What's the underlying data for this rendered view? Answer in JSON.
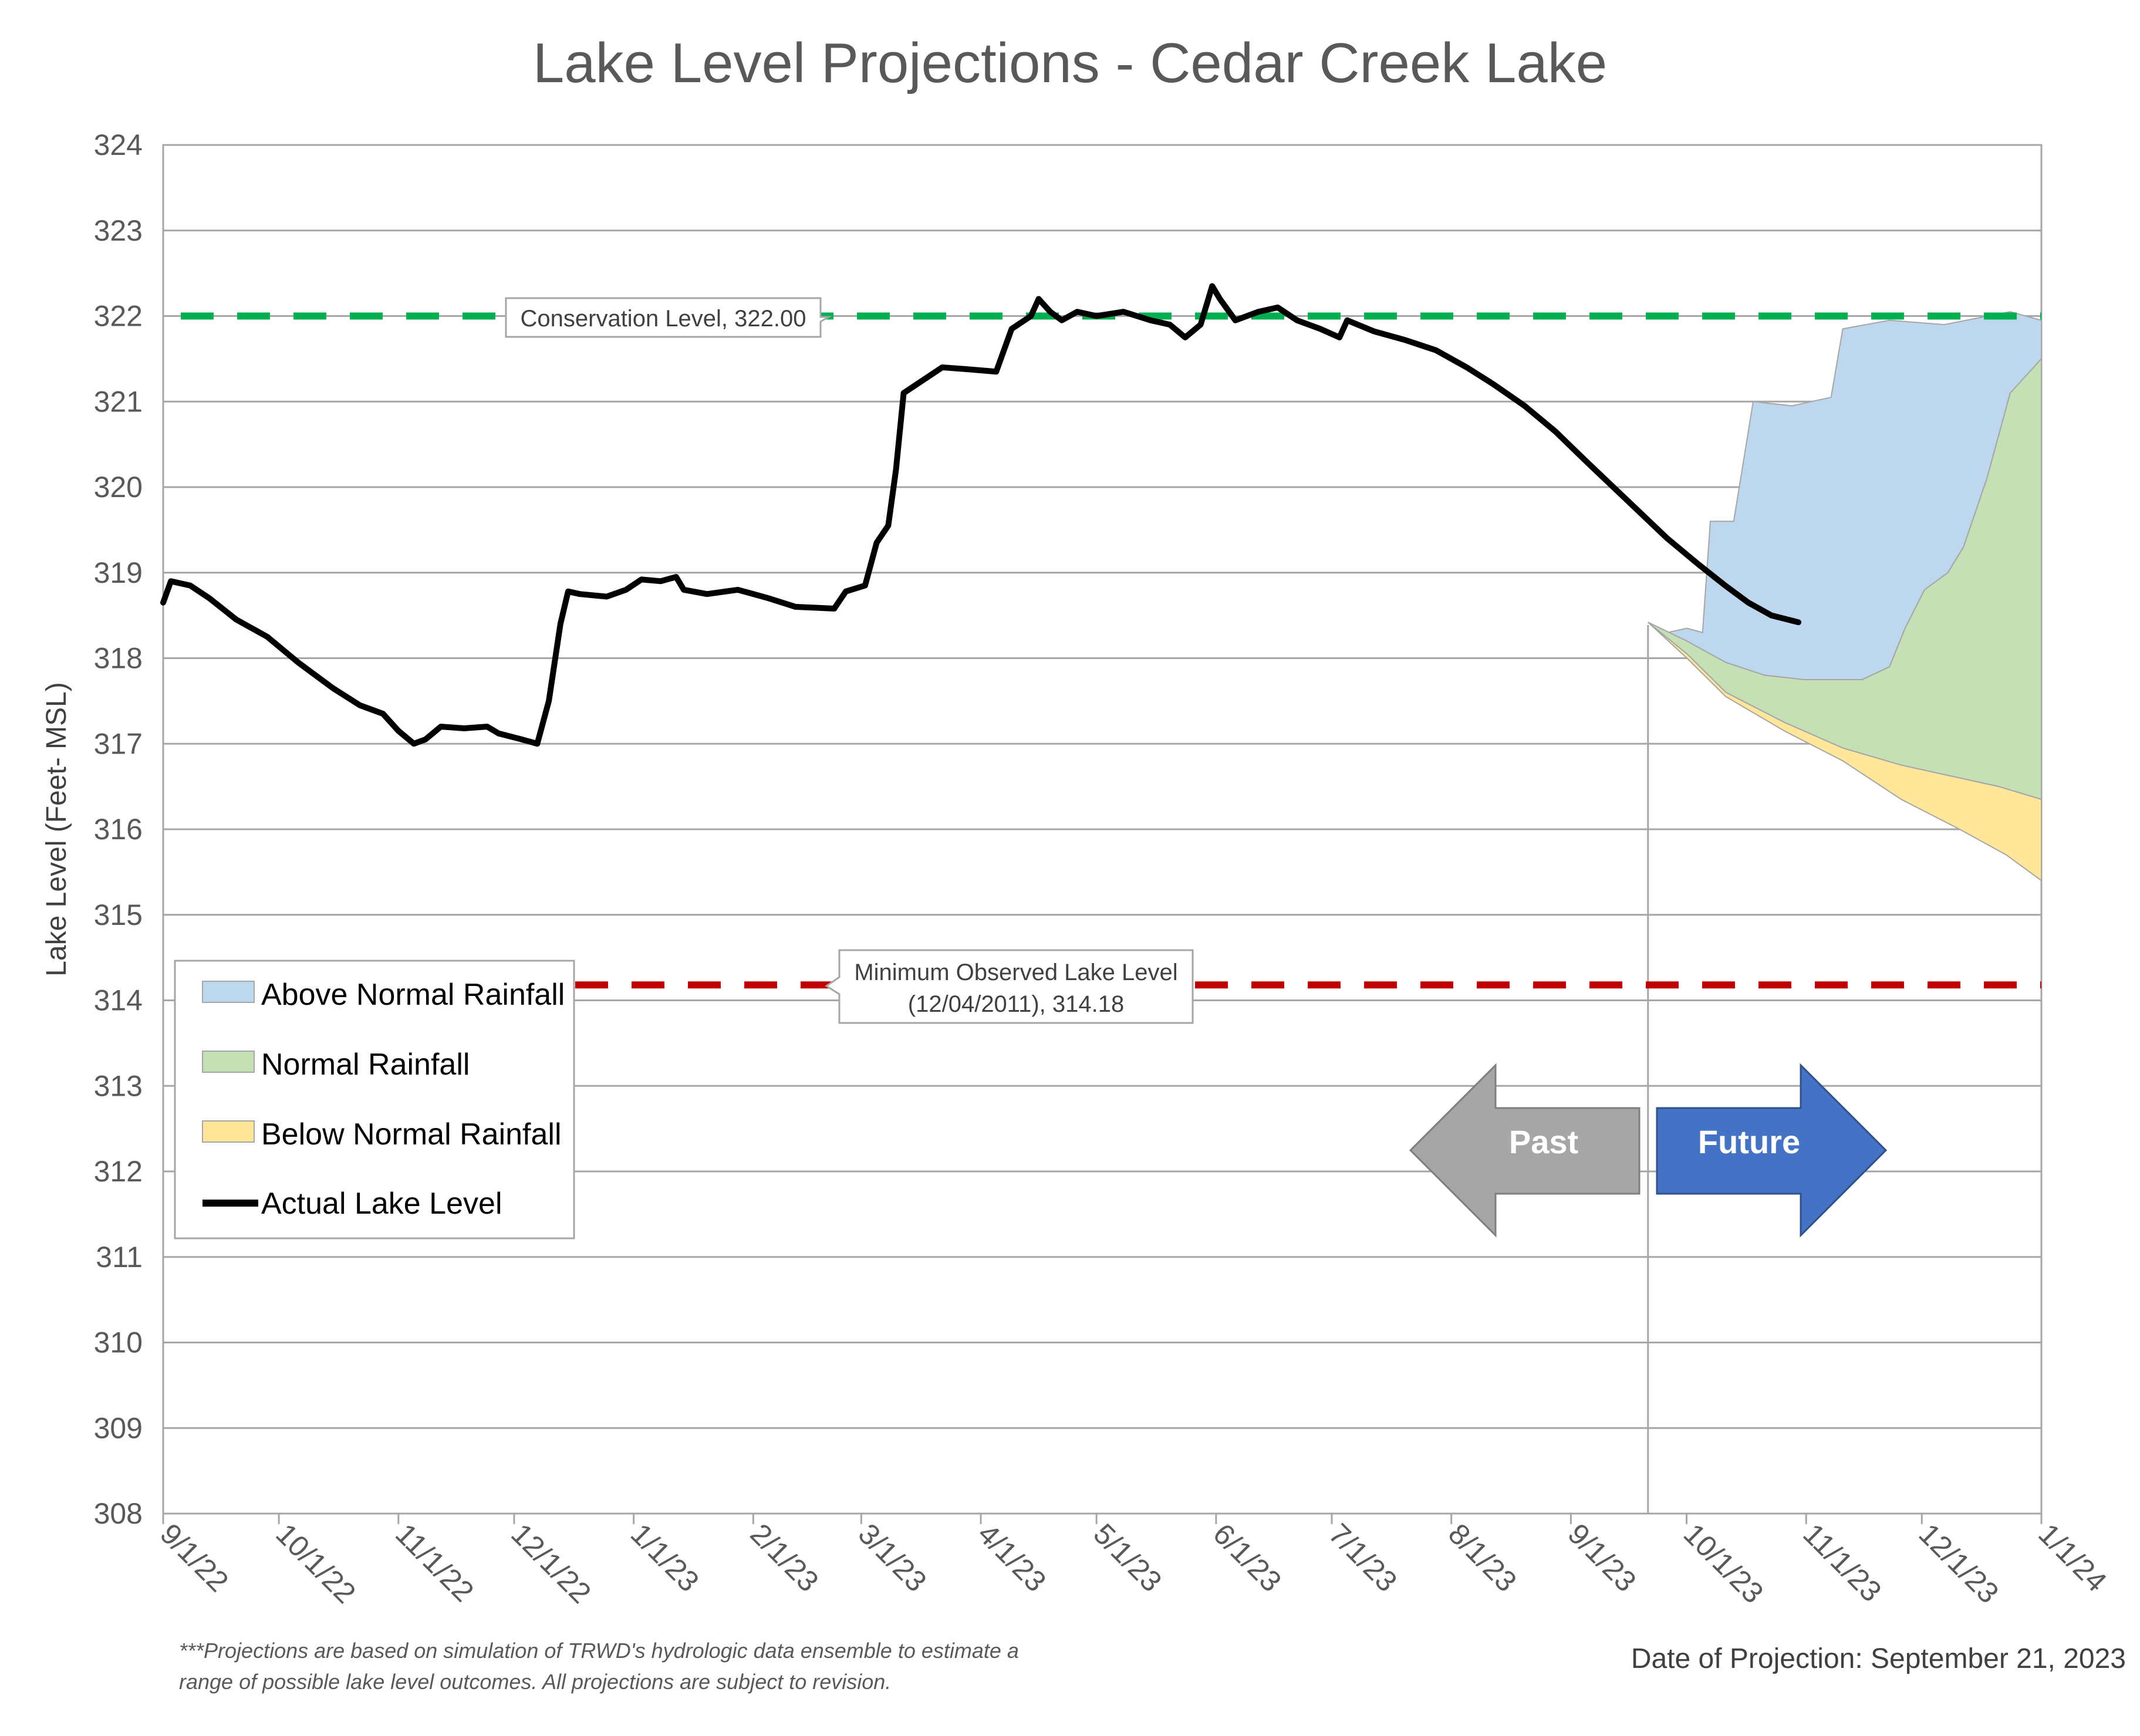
{
  "chart_data": {
    "type": "area",
    "title": "Lake Level Projections - Cedar Creek Lake",
    "ylabel": "Lake Level (Feet- MSL)",
    "xlabel": "",
    "ylim": [
      308,
      324
    ],
    "yticks": [
      "308",
      "309",
      "310",
      "311",
      "312",
      "313",
      "314",
      "315",
      "316",
      "317",
      "318",
      "319",
      "320",
      "321",
      "322",
      "323",
      "324"
    ],
    "xticks": [
      "9/1/22",
      "10/1/22",
      "11/1/22",
      "12/1/22",
      "1/1/23",
      "2/1/23",
      "3/1/23",
      "4/1/23",
      "5/1/23",
      "6/1/23",
      "7/1/23",
      "8/1/23",
      "9/1/23",
      "10/1/23",
      "11/1/23",
      "12/1/23",
      "1/1/24"
    ],
    "grid": "horizontal",
    "projection_date_label": "9/21/23",
    "actual_lake_level": {
      "name": "Actual Lake Level",
      "color": "#000000",
      "points": [
        [
          "9/1/22",
          318.65
        ],
        [
          "9/3/22",
          318.9
        ],
        [
          "9/8/22",
          318.85
        ],
        [
          "9/13/22",
          318.7
        ],
        [
          "9/20/22",
          318.45
        ],
        [
          "9/28/22",
          318.25
        ],
        [
          "10/6/22",
          317.95
        ],
        [
          "10/15/22",
          317.65
        ],
        [
          "10/22/22",
          317.45
        ],
        [
          "10/28/22",
          317.35
        ],
        [
          "11/1/22",
          317.15
        ],
        [
          "11/5/22",
          317.0
        ],
        [
          "11/8/22",
          317.05
        ],
        [
          "11/12/22",
          317.2
        ],
        [
          "11/18/22",
          317.18
        ],
        [
          "11/24/22",
          317.2
        ],
        [
          "11/27/22",
          317.12
        ],
        [
          "12/3/22",
          317.05
        ],
        [
          "12/7/22",
          317.0
        ],
        [
          "12/10/22",
          317.5
        ],
        [
          "12/13/22",
          318.4
        ],
        [
          "12/15/22",
          318.78
        ],
        [
          "12/18/22",
          318.75
        ],
        [
          "12/25/22",
          318.72
        ],
        [
          "12/30/22",
          318.8
        ],
        [
          "1/3/23",
          318.92
        ],
        [
          "1/8/23",
          318.9
        ],
        [
          "1/12/23",
          318.95
        ],
        [
          "1/14/23",
          318.8
        ],
        [
          "1/20/23",
          318.75
        ],
        [
          "1/28/23",
          318.8
        ],
        [
          "2/5/23",
          318.7
        ],
        [
          "2/12/23",
          318.6
        ],
        [
          "2/22/23",
          318.58
        ],
        [
          "2/25/23",
          318.78
        ],
        [
          "3/2/23",
          318.85
        ],
        [
          "3/5/23",
          319.35
        ],
        [
          "3/8/23",
          319.55
        ],
        [
          "3/10/23",
          320.2
        ],
        [
          "3/12/23",
          321.1
        ],
        [
          "3/17/23",
          321.25
        ],
        [
          "3/22/23",
          321.4
        ],
        [
          "3/28/23",
          321.38
        ],
        [
          "4/5/23",
          321.35
        ],
        [
          "4/9/23",
          321.85
        ],
        [
          "4/14/23",
          322.0
        ],
        [
          "4/16/23",
          322.2
        ],
        [
          "4/19/23",
          322.05
        ],
        [
          "4/22/23",
          321.95
        ],
        [
          "4/26/23",
          322.05
        ],
        [
          "5/1/23",
          322.0
        ],
        [
          "5/8/23",
          322.05
        ],
        [
          "5/15/23",
          321.95
        ],
        [
          "5/20/23",
          321.9
        ],
        [
          "5/24/23",
          321.75
        ],
        [
          "5/28/23",
          321.9
        ],
        [
          "5/31/23",
          322.35
        ],
        [
          "6/2/23",
          322.2
        ],
        [
          "6/6/23",
          321.95
        ],
        [
          "6/12/23",
          322.05
        ],
        [
          "6/17/23",
          322.1
        ],
        [
          "6/22/23",
          321.95
        ],
        [
          "6/28/23",
          321.85
        ],
        [
          "7/3/23",
          321.75
        ],
        [
          "7/5/23",
          321.95
        ],
        [
          "7/12/23",
          321.82
        ],
        [
          "7/20/23",
          321.72
        ],
        [
          "7/28/23",
          321.6
        ],
        [
          "8/5/23",
          321.4
        ],
        [
          "8/12/23",
          321.2
        ],
        [
          "8/20/23",
          320.95
        ],
        [
          "8/28/23",
          320.65
        ],
        [
          "9/5/23",
          320.3
        ],
        [
          "9/12/23",
          320.0
        ],
        [
          "9/19/23",
          319.7
        ],
        [
          "9/26/23",
          319.4
        ],
        [
          "10/4/23",
          319.1
        ],
        [
          "10/11/23",
          318.85
        ],
        [
          "10/17/23",
          318.65
        ],
        [
          "10/23/23",
          318.5
        ],
        [
          "10/30/23",
          318.42
        ]
      ]
    },
    "series": [
      {
        "name": "Above Normal Rainfall",
        "color": "#BDD7EE",
        "upper": [
          [
            0,
            318.42
          ],
          [
            5,
            318.3
          ],
          [
            10,
            318.35
          ],
          [
            14,
            318.3
          ],
          [
            16,
            319.6
          ],
          [
            22,
            319.6
          ],
          [
            27,
            321.0
          ],
          [
            37,
            320.95
          ],
          [
            47,
            321.05
          ],
          [
            50,
            321.85
          ],
          [
            62,
            321.95
          ],
          [
            76,
            321.9
          ],
          [
            93,
            322.05
          ],
          [
            101,
            321.95
          ]
        ],
        "lower": [
          [
            0,
            318.42
          ],
          [
            10,
            318.2
          ],
          [
            20,
            317.95
          ],
          [
            30,
            317.8
          ],
          [
            40,
            317.75
          ],
          [
            55,
            317.75
          ],
          [
            62,
            317.9
          ],
          [
            66,
            318.35
          ],
          [
            71,
            318.8
          ],
          [
            77,
            319.0
          ],
          [
            81,
            319.3
          ],
          [
            87,
            320.1
          ],
          [
            93,
            321.1
          ],
          [
            101,
            321.5
          ]
        ]
      },
      {
        "name": "Normal Rainfall",
        "color": "#C5E0B4",
        "upper": [
          [
            0,
            318.42
          ],
          [
            10,
            318.2
          ],
          [
            20,
            317.95
          ],
          [
            30,
            317.8
          ],
          [
            40,
            317.75
          ],
          [
            55,
            317.75
          ],
          [
            62,
            317.9
          ],
          [
            66,
            318.35
          ],
          [
            71,
            318.8
          ],
          [
            77,
            319.0
          ],
          [
            81,
            319.3
          ],
          [
            87,
            320.1
          ],
          [
            93,
            321.1
          ],
          [
            101,
            321.5
          ]
        ],
        "lower": [
          [
            0,
            318.42
          ],
          [
            10,
            318.05
          ],
          [
            20,
            317.6
          ],
          [
            35,
            317.25
          ],
          [
            50,
            316.95
          ],
          [
            65,
            316.75
          ],
          [
            75,
            316.65
          ],
          [
            90,
            316.5
          ],
          [
            101,
            316.35
          ]
        ]
      },
      {
        "name": "Below Normal Rainfall",
        "color": "#FFE699",
        "upper": [
          [
            0,
            318.42
          ],
          [
            10,
            318.05
          ],
          [
            20,
            317.6
          ],
          [
            35,
            317.25
          ],
          [
            50,
            316.95
          ],
          [
            65,
            316.75
          ],
          [
            75,
            316.65
          ],
          [
            90,
            316.5
          ],
          [
            101,
            316.35
          ]
        ],
        "lower": [
          [
            0,
            318.42
          ],
          [
            10,
            318.0
          ],
          [
            20,
            317.55
          ],
          [
            35,
            317.15
          ],
          [
            50,
            316.8
          ],
          [
            65,
            316.35
          ],
          [
            80,
            316.0
          ],
          [
            92,
            315.7
          ],
          [
            101,
            315.4
          ]
        ]
      }
    ],
    "reference_lines": [
      {
        "label": "Conservation Level, 322.00",
        "value": 322.0,
        "color": "#00B050"
      },
      {
        "label_line1": "Minimum Observed Lake Level",
        "label_line2": "(12/04/2011), 314.18",
        "value": 314.18,
        "color": "#C00000"
      }
    ],
    "legend": {
      "position": "bottom-left",
      "entries": [
        {
          "label": "Above Normal Rainfall",
          "color": "#BDD7EE",
          "kind": "area"
        },
        {
          "label": "Normal Rainfall",
          "color": "#C5E0B4",
          "kind": "area"
        },
        {
          "label": "Below Normal Rainfall",
          "color": "#FFE699",
          "kind": "area"
        },
        {
          "label": "Actual Lake Level",
          "color": "#000000",
          "kind": "line"
        }
      ]
    },
    "arrows": {
      "past": {
        "label": "Past",
        "color": "#A6A6A6"
      },
      "future": {
        "label": "Future",
        "color": "#4472C4"
      }
    }
  },
  "footnote": {
    "line1": "***Projections are based on simulation of TRWD's hydrologic data ensemble to estimate a",
    "line2": "range of possible lake level outcomes.  All projections are subject to revision."
  },
  "projection_date": "Date of Projection: September 21, 2023"
}
